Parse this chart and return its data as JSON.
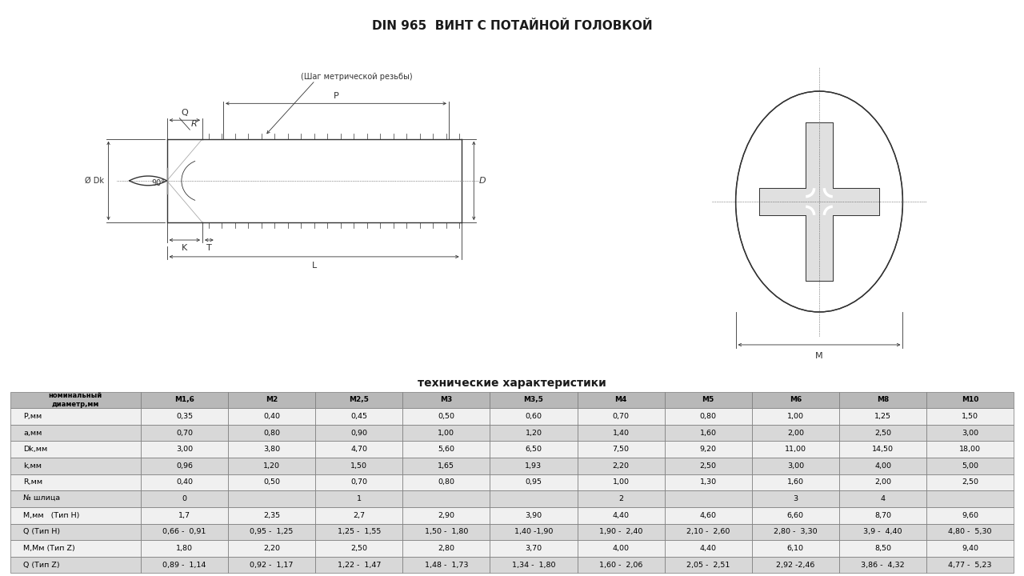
{
  "title": "DIN 965  ВИНТ С ПОТАЙНОЙ ГОЛОВКОЙ",
  "table_title": "технические характеристики",
  "bg_color": "#ffffff",
  "line_color": "#333333",
  "col_headers": [
    "номинальный\nдиаметр,мм",
    "М1,6",
    "М2",
    "М2,5",
    "М3",
    "М3,5",
    "М4",
    "М5",
    "М6",
    "М8",
    "М10"
  ],
  "row_labels": [
    "P,мм",
    "a,мм",
    "Dk,мм",
    "k,мм",
    "R,мм",
    "№ шлица",
    "M,мм   (Тип Н)",
    "Q (Тип Н)",
    "M,Мм (Тип Z)",
    "Q (Тип Z)"
  ],
  "table_data": [
    [
      "0,35",
      "0,40",
      "0,45",
      "0,50",
      "0,60",
      "0,70",
      "0,80",
      "1,00",
      "1,25",
      "1,50"
    ],
    [
      "0,70",
      "0,80",
      "0,90",
      "1,00",
      "1,20",
      "1,40",
      "1,60",
      "2,00",
      "2,50",
      "3,00"
    ],
    [
      "3,00",
      "3,80",
      "4,70",
      "5,60",
      "6,50",
      "7,50",
      "9,20",
      "11,00",
      "14,50",
      "18,00"
    ],
    [
      "0,96",
      "1,20",
      "1,50",
      "1,65",
      "1,93",
      "2,20",
      "2,50",
      "3,00",
      "4,00",
      "5,00"
    ],
    [
      "0,40",
      "0,50",
      "0,70",
      "0,80",
      "0,95",
      "1,00",
      "1,30",
      "1,60",
      "2,00",
      "2,50"
    ],
    [
      "0",
      "",
      "1",
      "",
      "",
      "2",
      "",
      "3",
      "4",
      ""
    ],
    [
      "1,7",
      "2,35",
      "2,7",
      "2,90",
      "3,90",
      "4,40",
      "4,60",
      "6,60",
      "8,70",
      "9,60"
    ],
    [
      "0,66 -  0,91",
      "0,95 -  1,25",
      "1,25 -  1,55",
      "1,50 -  1,80",
      "1,40 -1,90",
      "1,90 -  2,40",
      "2,10 -  2,60",
      "2,80 -  3,30",
      "3,9 -  4,40",
      "4,80 -  5,30"
    ],
    [
      "1,80",
      "2,20",
      "2,50",
      "2,80",
      "3,70",
      "4,00",
      "4,40",
      "6,10",
      "8,50",
      "9,40"
    ],
    [
      "0,89 -  1,14",
      "0,92 -  1,17",
      "1,22 -  1,47",
      "1,48 -  1,73",
      "1,34 -  1,80",
      "1,60 -  2,06",
      "2,05 -  2,51",
      "2,92 -2,46",
      "3,86 -  4,32",
      "4,77 -  5,23"
    ]
  ]
}
